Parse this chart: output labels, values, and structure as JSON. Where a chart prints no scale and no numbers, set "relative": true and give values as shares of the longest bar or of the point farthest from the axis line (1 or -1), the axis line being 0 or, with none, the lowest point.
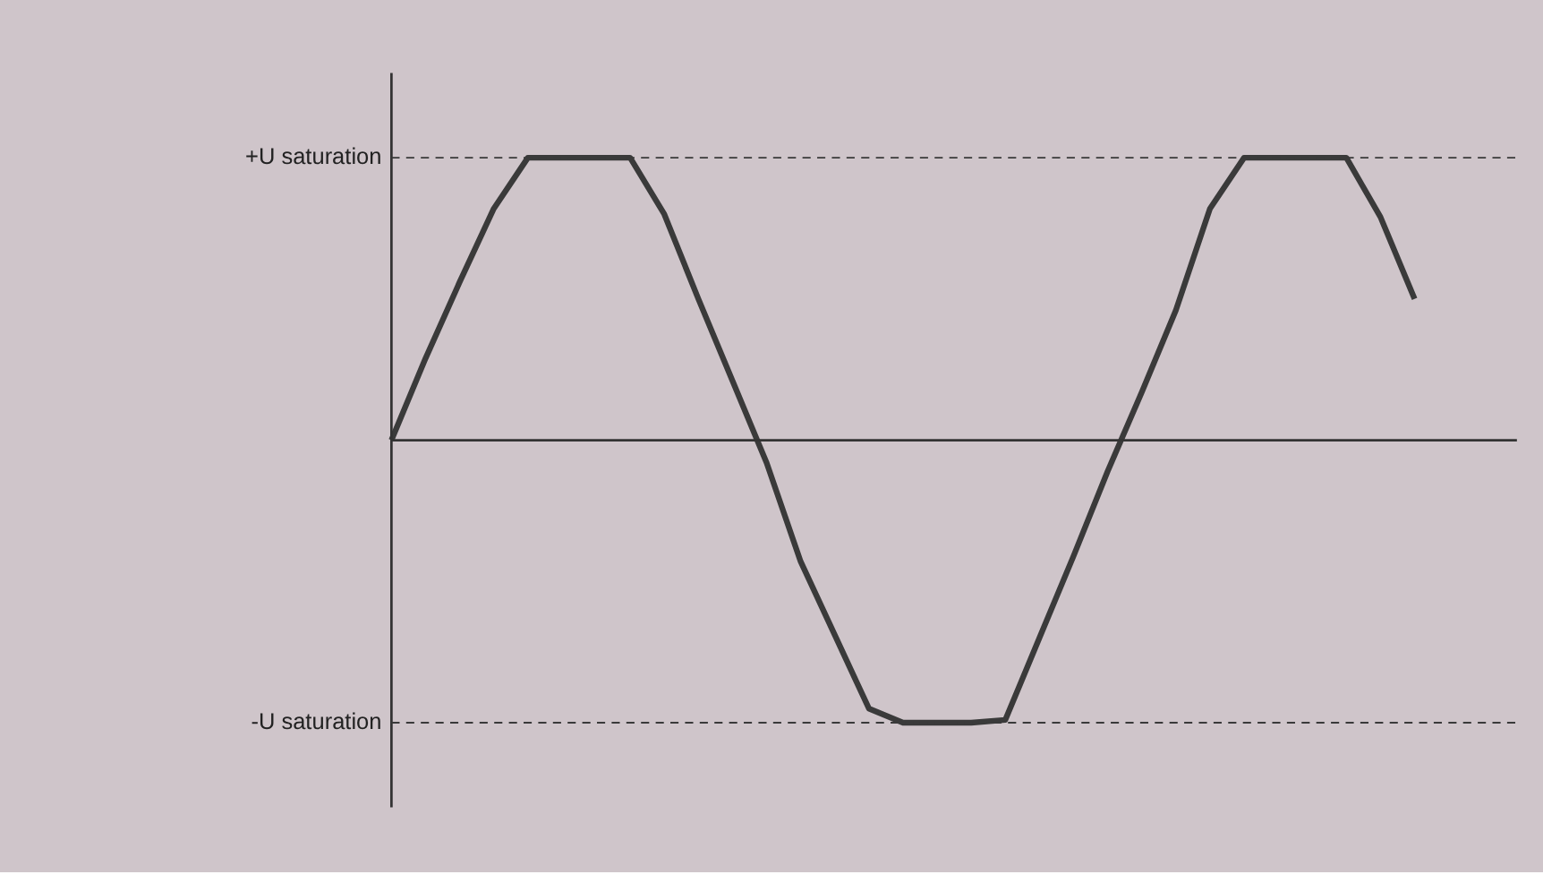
{
  "chart_data": {
    "type": "line",
    "relative": true,
    "categories": [
      null,
      null,
      null,
      null,
      null,
      null,
      null,
      null,
      null,
      null,
      null,
      null,
      null,
      null,
      null,
      null,
      null,
      null,
      null,
      null,
      null,
      null,
      null,
      null,
      null,
      null,
      null,
      null,
      null,
      null,
      null,
      null,
      null,
      null
    ],
    "series": [
      {
        "color": "#3a3a3a",
        "values": [
          0,
          0.29,
          0.56,
          0.82,
          1,
          1,
          1,
          1,
          0.8,
          0.5,
          0.21,
          -0.08,
          -0.43,
          -0.69,
          -0.95,
          -1,
          -1,
          -1,
          -0.99,
          -0.7,
          -0.41,
          -0.11,
          0.17,
          0.46,
          0.82,
          1,
          1,
          1,
          1,
          0.79,
          0.5,
          null,
          null,
          null
        ]
      }
    ],
    "ref_lines": [
      {
        "axis": "y",
        "value": 1,
        "label": "+U saturation",
        "line_style": "dashed",
        "color": "#3a3a3a"
      },
      {
        "axis": "y",
        "value": -1,
        "label": "-U saturation",
        "line_style": "dashed",
        "color": "#3a3a3a"
      }
    ],
    "grid": false,
    "legend": false,
    "marker": "none",
    "line_style": "solid",
    "tick_labels": false
  }
}
